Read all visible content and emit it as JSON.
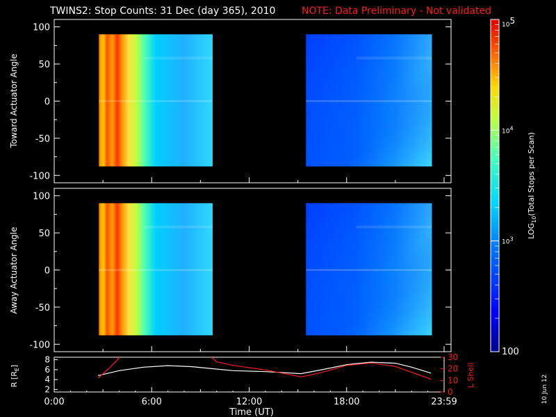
{
  "header": {
    "title": "TWINS2: Stop Counts: 31 Dec (day 365), 2010",
    "note": "NOTE: Data Preliminary - Not validated"
  },
  "side_date": "10 Jun 12",
  "colors": {
    "background": "#000000",
    "axis": "#ffffff",
    "note": "#ff1a1a",
    "series_r": "#ffffff",
    "series_lshell": "#ff1a1a"
  },
  "chart_data": [
    {
      "type": "heatmap",
      "panel": "toward",
      "ylabel": "Toward Actuator Angle",
      "ylim": [
        -110,
        110
      ],
      "yticks": [
        "100",
        "50",
        "0",
        "-50",
        "-100"
      ],
      "xlim_hours": [
        0,
        24
      ],
      "blocks": [
        {
          "x_start": "2:45",
          "x_end": "9:45",
          "y_range": [
            -88,
            90
          ]
        },
        {
          "x_start": "15:30",
          "x_end": "23:15",
          "y_range": [
            -88,
            90
          ]
        }
      ]
    },
    {
      "type": "heatmap",
      "panel": "away",
      "ylabel": "Away Actuator Angle",
      "ylim": [
        -110,
        110
      ],
      "yticks": [
        "100",
        "50",
        "0",
        "-50",
        "-100"
      ],
      "xlim_hours": [
        0,
        24
      ],
      "blocks": [
        {
          "x_start": "2:45",
          "x_end": "9:45",
          "y_range": [
            -88,
            90
          ]
        },
        {
          "x_start": "15:30",
          "x_end": "23:15",
          "y_range": [
            -88,
            90
          ]
        }
      ]
    },
    {
      "type": "line",
      "panel": "orbit",
      "xlabel": "Time (UT)",
      "xticks": [
        "0:00",
        "6:00",
        "12:00",
        "18:00",
        "23:59"
      ],
      "xtick_hours": [
        0,
        6,
        12,
        18,
        24
      ],
      "ylabel_left": "R [R",
      "ylabel_left_sub": "E",
      "ylabel_left_end": "]",
      "ylim_left": [
        1.5,
        8.5
      ],
      "yticks_left": [
        "8",
        "6",
        "4",
        "2"
      ],
      "ylabel_right": "L Shell",
      "ylim_right": [
        0,
        30
      ],
      "yticks_right": [
        "30",
        "20",
        "10",
        "0"
      ],
      "series": [
        {
          "axis": "left",
          "x": [
            2.7,
            4,
            5.5,
            7,
            8.5,
            9.7,
            11,
            13,
            15.2,
            16.5,
            18,
            19.5,
            21,
            22,
            23.2
          ],
          "y": [
            4.8,
            5.8,
            6.5,
            6.8,
            6.6,
            6.2,
            5.8,
            5.6,
            5.2,
            6.0,
            7.0,
            7.5,
            7.3,
            6.5,
            5.3
          ]
        },
        {
          "axis": "right",
          "x": [
            2.7,
            3.5,
            4.1,
            9.6,
            10,
            11,
            13,
            15.2,
            16.5,
            18,
            19.5,
            21,
            22,
            23.2
          ],
          "y": [
            12,
            22,
            31,
            31,
            26,
            23,
            19,
            13,
            17,
            23,
            25,
            22,
            17,
            11
          ]
        }
      ]
    },
    {
      "type": "heatmap",
      "panel": "colorbar",
      "label": "LOG",
      "label_sub": "10",
      "label_end": "(Total Stops per Scan)",
      "scale": "log",
      "range": [
        100,
        100000
      ],
      "tick_labels": [
        {
          "base": "10",
          "exp": "5"
        },
        {
          "base": "10",
          "exp": "4"
        },
        {
          "base": "10",
          "exp": "3"
        },
        {
          "base": "100",
          "exp": ""
        }
      ]
    }
  ]
}
